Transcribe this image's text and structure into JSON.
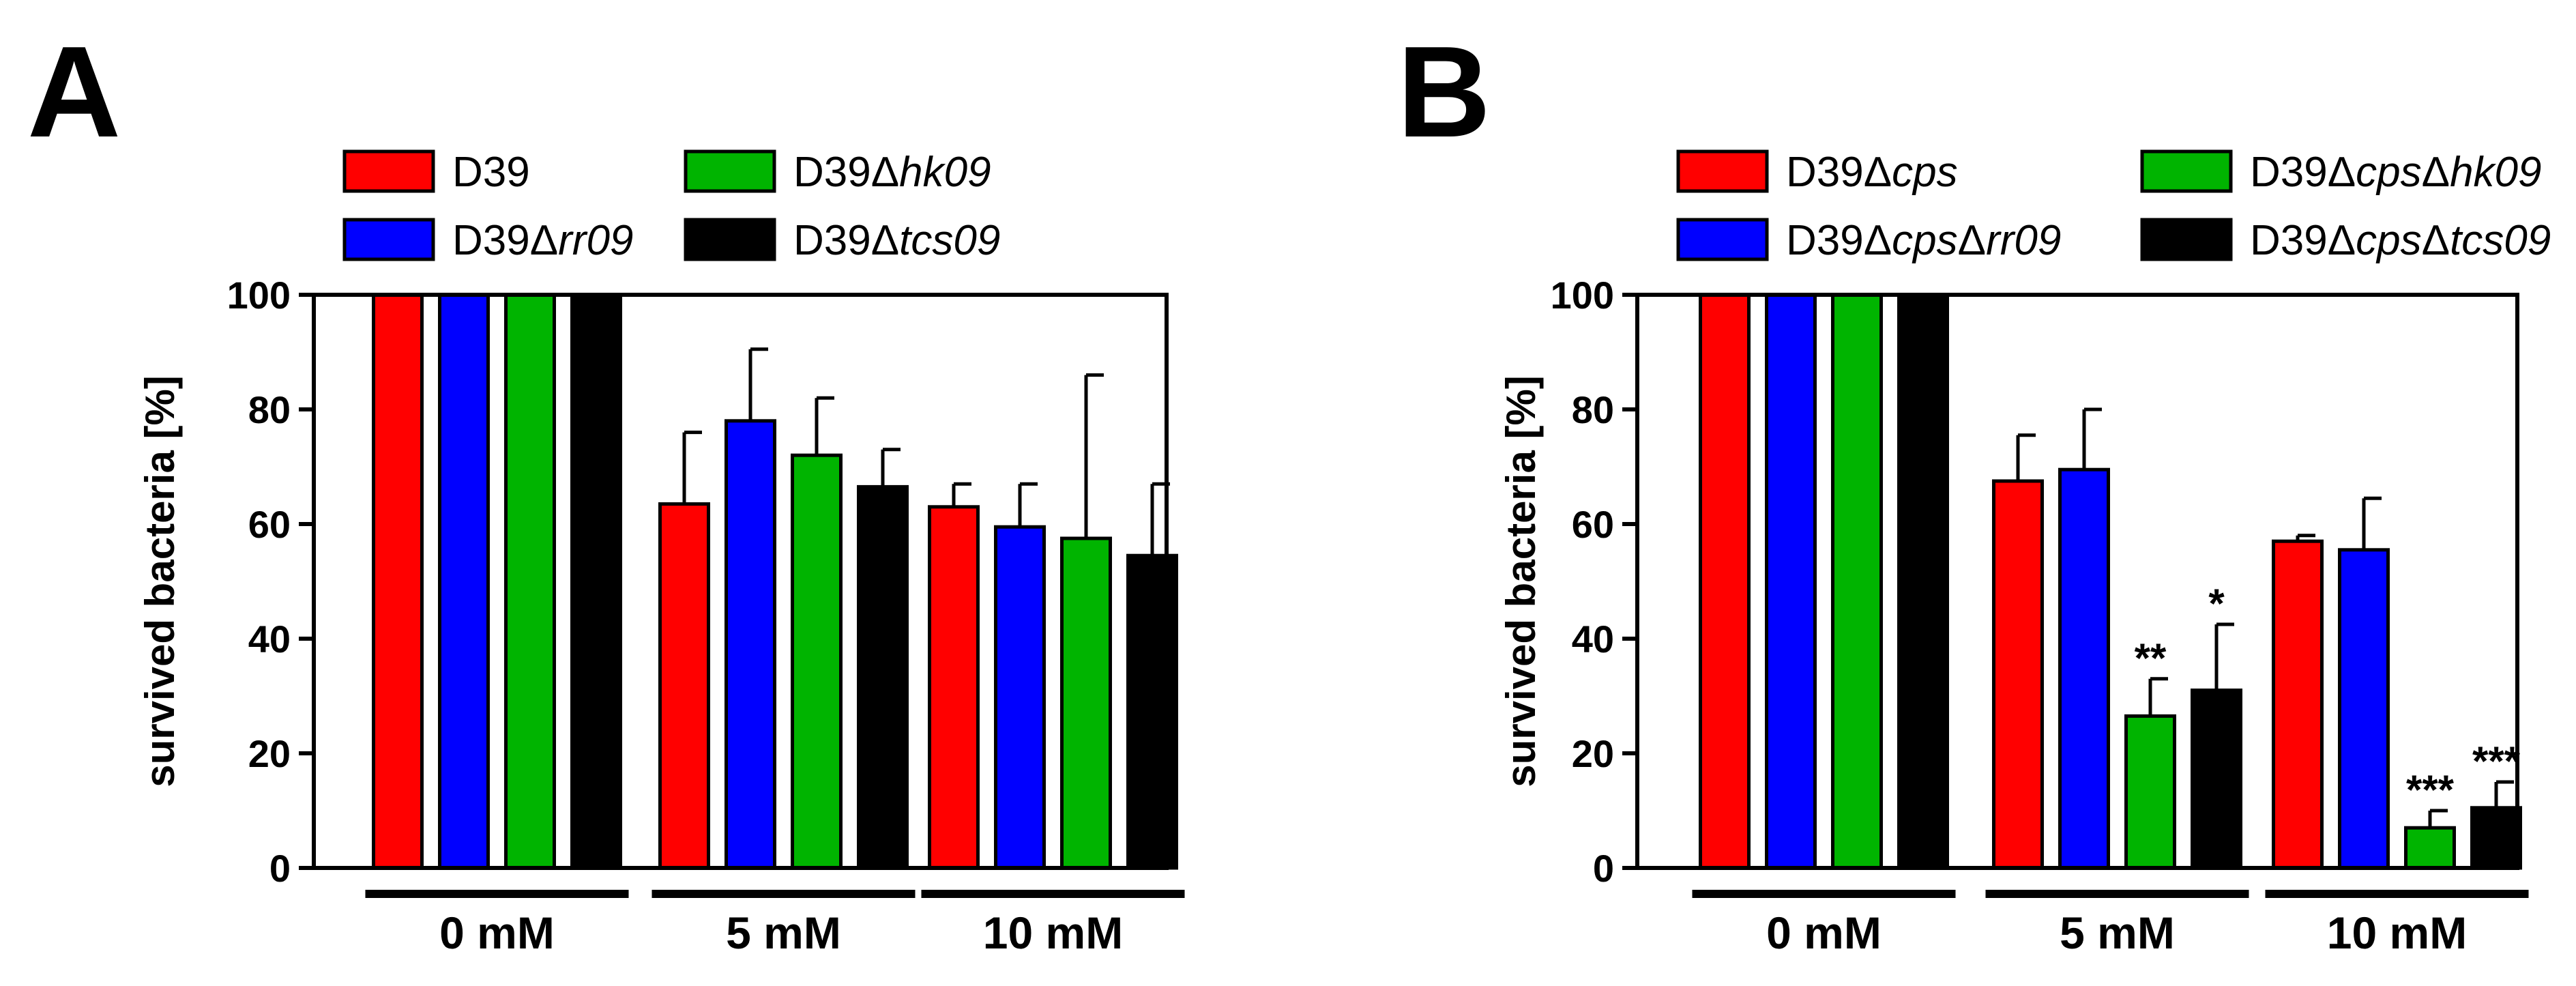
{
  "chart_data": [
    {
      "panel": "A",
      "type": "bar",
      "ylabel": "survived bacteria [%]",
      "ylim": [
        0,
        100
      ],
      "yticks": [
        0,
        20,
        40,
        60,
        80,
        100
      ],
      "categories": [
        "0 mM",
        "5 mM",
        "10 mM"
      ],
      "legend_position": "top",
      "series": [
        {
          "name": "D39",
          "name_parts": [
            {
              "t": "D39",
              "i": false
            }
          ],
          "color": "#ff0000",
          "values": [
            100,
            63.5,
            63
          ],
          "errors": [
            0,
            12.5,
            4
          ],
          "stars": [
            "",
            "",
            ""
          ]
        },
        {
          "name": "D39Δrr09",
          "name_parts": [
            {
              "t": "D39Δ",
              "i": false
            },
            {
              "t": "rr09",
              "i": true
            }
          ],
          "color": "#0000ff",
          "values": [
            100,
            78,
            59.5
          ],
          "errors": [
            0,
            12.5,
            7.5
          ],
          "stars": [
            "",
            "",
            ""
          ]
        },
        {
          "name": "D39Δhk09",
          "name_parts": [
            {
              "t": "D39Δ",
              "i": false
            },
            {
              "t": "hk09",
              "i": true
            }
          ],
          "color": "#00b400",
          "values": [
            100,
            72,
            57.5
          ],
          "errors": [
            0,
            10,
            28.5
          ],
          "stars": [
            "",
            "",
            ""
          ]
        },
        {
          "name": "D39Δtcs09",
          "name_parts": [
            {
              "t": "D39Δ",
              "i": false
            },
            {
              "t": "tcs09",
              "i": true
            }
          ],
          "color": "#000000",
          "values": [
            100,
            66.5,
            54.5
          ],
          "errors": [
            0,
            6.5,
            12.5
          ],
          "stars": [
            "",
            "",
            ""
          ]
        }
      ]
    },
    {
      "panel": "B",
      "type": "bar",
      "ylabel": "survived bacteria [%]",
      "ylim": [
        0,
        100
      ],
      "yticks": [
        0,
        20,
        40,
        60,
        80,
        100
      ],
      "categories": [
        "0 mM",
        "5 mM",
        "10 mM"
      ],
      "legend_position": "top",
      "series": [
        {
          "name": "D39Δcps",
          "name_parts": [
            {
              "t": "D39Δ",
              "i": false
            },
            {
              "t": "cps",
              "i": true
            }
          ],
          "color": "#ff0000",
          "values": [
            100,
            67.5,
            57
          ],
          "errors": [
            0,
            8,
            1
          ],
          "stars": [
            "",
            "",
            ""
          ]
        },
        {
          "name": "D39ΔcpsΔrr09",
          "name_parts": [
            {
              "t": "D39Δ",
              "i": false
            },
            {
              "t": "cps",
              "i": true
            },
            {
              "t": "Δ",
              "i": false
            },
            {
              "t": "rr09",
              "i": true
            }
          ],
          "color": "#0000ff",
          "values": [
            100,
            69.5,
            55.5
          ],
          "errors": [
            0,
            10.5,
            9
          ],
          "stars": [
            "",
            "",
            ""
          ]
        },
        {
          "name": "D39ΔcpsΔhk09",
          "name_parts": [
            {
              "t": "D39Δ",
              "i": false
            },
            {
              "t": "cps",
              "i": true
            },
            {
              "t": "Δ",
              "i": false
            },
            {
              "t": "hk09",
              "i": true
            }
          ],
          "color": "#00b400",
          "values": [
            100,
            26.5,
            7
          ],
          "errors": [
            0,
            6.5,
            3
          ],
          "stars": [
            "",
            "**",
            "***"
          ]
        },
        {
          "name": "D39ΔcpsΔtcs09",
          "name_parts": [
            {
              "t": "D39Δ",
              "i": false
            },
            {
              "t": "cps",
              "i": true
            },
            {
              "t": "Δ",
              "i": false
            },
            {
              "t": "tcs09",
              "i": true
            }
          ],
          "color": "#000000",
          "values": [
            100,
            31,
            10.5
          ],
          "errors": [
            0,
            11.5,
            4.5
          ],
          "stars": [
            "",
            "*",
            "***"
          ]
        }
      ]
    }
  ]
}
